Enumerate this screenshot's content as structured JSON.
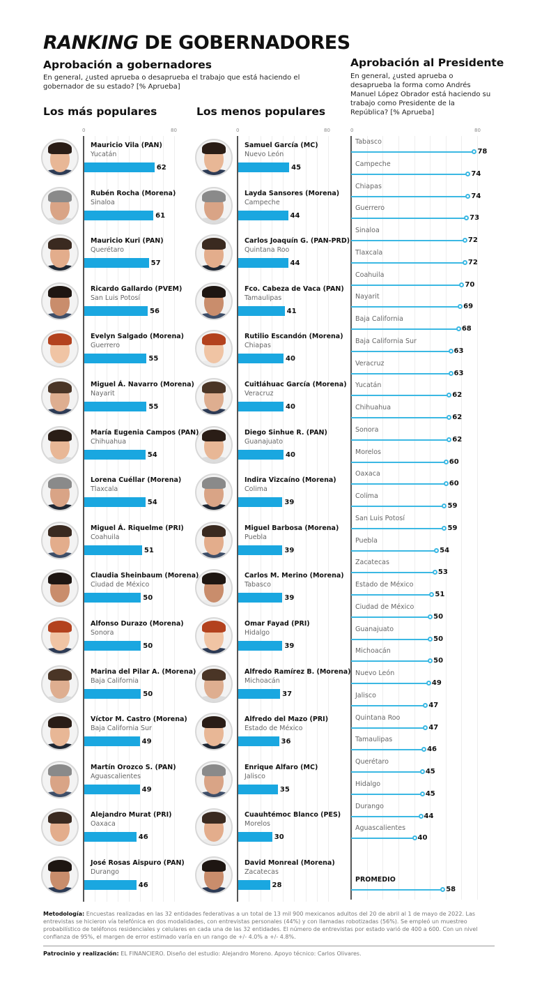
{
  "header": {
    "title_italic": "RANKING",
    "title_rest": " DE GOBERNADORES",
    "subtitle": "Aprobación a gobernadores",
    "question": "En general, ¿usted aprueba o desaprueba el trabajo que está haciendo el gobernador de su estado? [% Aprueba]"
  },
  "president_section": {
    "title": "Aprobación al Presidente",
    "question": "En general, ¿usted aprueba o desaprueba la forma como Andrés Manuel López Obrador está haciendo su trabajo como Presidente de la República? [% Aprueba]",
    "axis_min_label": "0",
    "axis_max_label": "80",
    "promedio_label": "PROMEDIO",
    "promedio_value": 58
  },
  "sections": {
    "most_popular_title": "Los más populares",
    "least_popular_title": "Los menos populares",
    "axis_min_label": "0",
    "axis_max_label": "80"
  },
  "colors": {
    "bar": "#1aa7e0",
    "lollipop": "#3bb8e3",
    "axis": "#555555",
    "grid": "#eeeeee"
  },
  "chart_data": [
    {
      "type": "bar",
      "title": "Los más populares",
      "orientation": "horizontal",
      "xlim": [
        0,
        80
      ],
      "xlabel": "% Aprueba",
      "grid": true,
      "categories": [
        "Mauricio Vila (PAN) - Yucatán",
        "Rubén Rocha (Morena) - Sinaloa",
        "Mauricio Kuri (PAN) - Querétaro",
        "Ricardo Gallardo (PVEM) - San Luis Potosí",
        "Evelyn Salgado (Morena) - Guerrero",
        "Miguel Á. Navarro (Morena) - Nayarit",
        "María Eugenia Campos (PAN) - Chihuahua",
        "Lorena Cuéllar (Morena) - Tlaxcala",
        "Miguel Á. Riquelme (PRI) - Coahuila",
        "Claudia Sheinbaum (Morena) - Ciudad de México",
        "Alfonso Durazo (Morena) - Sonora",
        "Marina del Pilar A. (Morena) - Baja California",
        "Víctor M. Castro (Morena) - Baja California Sur",
        "Martín Orozco S. (PAN) - Aguascalientes",
        "Alejandro Murat (PRI) - Oaxaca",
        "José Rosas Aispuro (PAN) - Durango"
      ],
      "values": [
        62,
        61,
        57,
        56,
        55,
        55,
        54,
        54,
        51,
        50,
        50,
        50,
        49,
        49,
        46,
        46
      ]
    },
    {
      "type": "bar",
      "title": "Los menos populares",
      "orientation": "horizontal",
      "xlim": [
        0,
        80
      ],
      "xlabel": "% Aprueba",
      "grid": true,
      "categories": [
        "Samuel García (MC) - Nuevo León",
        "Layda Sansores (Morena) - Campeche",
        "Carlos Joaquín G. (PAN-PRD) - Quintana Roo",
        "Fco. Cabeza de Vaca (PAN) - Tamaulipas",
        "Rutilio Escandón (Morena) - Chiapas",
        "Cuitláhuac García (Morena) - Veracruz",
        "Diego Sinhue R. (PAN) - Guanajuato",
        "Indira Vizcaíno (Morena) - Colima",
        "Miguel Barbosa (Morena) - Puebla",
        "Carlos M. Merino (Morena) - Tabasco",
        "Omar Fayad (PRI) - Hidalgo",
        "Alfredo Ramírez B. (Morena) - Michoacán",
        "Alfredo del Mazo (PRI) - Estado de México",
        "Enrique Alfaro (MC) - Jalisco",
        "Cuauhtémoc Blanco (PES) - Morelos",
        "David Monreal (Morena) - Zacatecas"
      ],
      "values": [
        45,
        44,
        44,
        41,
        40,
        40,
        40,
        39,
        39,
        39,
        39,
        37,
        36,
        35,
        30,
        28
      ]
    },
    {
      "type": "bar",
      "subtype": "lollipop",
      "title": "Aprobación al Presidente",
      "orientation": "horizontal",
      "xlim": [
        0,
        80
      ],
      "xlabel": "% Aprueba",
      "grid": true,
      "categories": [
        "Tabasco",
        "Campeche",
        "Chiapas",
        "Guerrero",
        "Sinaloa",
        "Tlaxcala",
        "Coahuila",
        "Nayarit",
        "Baja California",
        "Baja California Sur",
        "Veracruz",
        "Yucatán",
        "Chihuahua",
        "Sonora",
        "Morelos",
        "Oaxaca",
        "Colima",
        "San Luis Potosí",
        "Puebla",
        "Zacatecas",
        "Estado de México",
        "Ciudad de México",
        "Guanajuato",
        "Michoacán",
        "Nuevo León",
        "Jalisco",
        "Quintana Roo",
        "Tamaulipas",
        "Querétaro",
        "Hidalgo",
        "Durango",
        "Aguascalientes",
        "PROMEDIO"
      ],
      "values": [
        78,
        74,
        74,
        73,
        72,
        72,
        70,
        69,
        68,
        63,
        63,
        62,
        62,
        62,
        60,
        60,
        59,
        59,
        54,
        53,
        51,
        50,
        50,
        50,
        49,
        47,
        47,
        46,
        45,
        45,
        44,
        40,
        58
      ]
    }
  ],
  "most_popular": [
    {
      "name": "Mauricio Vila (PAN)",
      "state": "Yucatán",
      "value": "62",
      "n": 62
    },
    {
      "name": "Rubén Rocha (Morena)",
      "state": "Sinaloa",
      "value": "61",
      "n": 61
    },
    {
      "name": "Mauricio Kuri (PAN)",
      "state": "Querétaro",
      "value": "57",
      "n": 57
    },
    {
      "name": "Ricardo Gallardo (PVEM)",
      "state": "San Luis Potosí",
      "value": "56",
      "n": 56
    },
    {
      "name": "Evelyn Salgado (Morena)",
      "state": "Guerrero",
      "value": "55",
      "n": 55
    },
    {
      "name": "Miguel Á. Navarro (Morena)",
      "state": "Nayarit",
      "value": "55",
      "n": 55
    },
    {
      "name": "María Eugenia Campos (PAN)",
      "state": "Chihuahua",
      "value": "54",
      "n": 54
    },
    {
      "name": "Lorena Cuéllar (Morena)",
      "state": "Tlaxcala",
      "value": "54",
      "n": 54
    },
    {
      "name": "Miguel Á. Riquelme (PRI)",
      "state": "Coahuila",
      "value": "51",
      "n": 51
    },
    {
      "name": "Claudia Sheinbaum (Morena)",
      "state": "Ciudad de México",
      "value": "50",
      "n": 50
    },
    {
      "name": "Alfonso Durazo (Morena)",
      "state": "Sonora",
      "value": "50",
      "n": 50
    },
    {
      "name": "Marina del Pilar A. (Morena)",
      "state": "Baja California",
      "value": "50",
      "n": 50
    },
    {
      "name": "Víctor M. Castro (Morena)",
      "state": "Baja California Sur",
      "value": "49",
      "n": 49
    },
    {
      "name": "Martín Orozco S. (PAN)",
      "state": "Aguascalientes",
      "value": "49",
      "n": 49
    },
    {
      "name": "Alejandro Murat (PRI)",
      "state": "Oaxaca",
      "value": "46",
      "n": 46
    },
    {
      "name": "José Rosas Aispuro (PAN)",
      "state": "Durango",
      "value": "46",
      "n": 46
    }
  ],
  "least_popular": [
    {
      "name": "Samuel García (MC)",
      "state": "Nuevo León",
      "value": "45",
      "n": 45
    },
    {
      "name": "Layda Sansores (Morena)",
      "state": "Campeche",
      "value": "44",
      "n": 44
    },
    {
      "name": "Carlos Joaquín G. (PAN-PRD)",
      "state": "Quintana Roo",
      "value": "44",
      "n": 44
    },
    {
      "name": "Fco. Cabeza de Vaca (PAN)",
      "state": "Tamaulipas",
      "value": "41",
      "n": 41
    },
    {
      "name": "Rutilio Escandón (Morena)",
      "state": "Chiapas",
      "value": "40",
      "n": 40
    },
    {
      "name": "Cuitláhuac García (Morena)",
      "state": "Veracruz",
      "value": "40",
      "n": 40
    },
    {
      "name": "Diego Sinhue R. (PAN)",
      "state": "Guanajuato",
      "value": "40",
      "n": 40
    },
    {
      "name": "Indira Vizcaíno (Morena)",
      "state": "Colima",
      "value": "39",
      "n": 39
    },
    {
      "name": "Miguel Barbosa (Morena)",
      "state": "Puebla",
      "value": "39",
      "n": 39
    },
    {
      "name": "Carlos M. Merino (Morena)",
      "state": "Tabasco",
      "value": "39",
      "n": 39
    },
    {
      "name": "Omar Fayad (PRI)",
      "state": "Hidalgo",
      "value": "39",
      "n": 39
    },
    {
      "name": "Alfredo Ramírez B. (Morena)",
      "state": "Michoacán",
      "value": "37",
      "n": 37
    },
    {
      "name": "Alfredo del Mazo (PRI)",
      "state": "Estado de México",
      "value": "36",
      "n": 36
    },
    {
      "name": "Enrique Alfaro (MC)",
      "state": "Jalisco",
      "value": "35",
      "n": 35
    },
    {
      "name": "Cuauhtémoc Blanco (PES)",
      "state": "Morelos",
      "value": "30",
      "n": 30
    },
    {
      "name": "David Monreal (Morena)",
      "state": "Zacatecas",
      "value": "28",
      "n": 28
    }
  ],
  "president_rows": [
    {
      "state": "Tabasco",
      "value": "78",
      "n": 78
    },
    {
      "state": "Campeche",
      "value": "74",
      "n": 74
    },
    {
      "state": "Chiapas",
      "value": "74",
      "n": 74
    },
    {
      "state": "Guerrero",
      "value": "73",
      "n": 73
    },
    {
      "state": "Sinaloa",
      "value": "72",
      "n": 72
    },
    {
      "state": "Tlaxcala",
      "value": "72",
      "n": 72
    },
    {
      "state": "Coahuila",
      "value": "70",
      "n": 70
    },
    {
      "state": "Nayarit",
      "value": "69",
      "n": 69
    },
    {
      "state": "Baja California",
      "value": "68",
      "n": 68
    },
    {
      "state": "Baja California Sur",
      "value": "63",
      "n": 63
    },
    {
      "state": "Veracruz",
      "value": "63",
      "n": 63
    },
    {
      "state": "Yucatán",
      "value": "62",
      "n": 62
    },
    {
      "state": "Chihuahua",
      "value": "62",
      "n": 62
    },
    {
      "state": "Sonora",
      "value": "62",
      "n": 62
    },
    {
      "state": "Morelos",
      "value": "60",
      "n": 60
    },
    {
      "state": "Oaxaca",
      "value": "60",
      "n": 60
    },
    {
      "state": "Colima",
      "value": "59",
      "n": 59
    },
    {
      "state": "San Luis Potosí",
      "value": "59",
      "n": 59
    },
    {
      "state": "Puebla",
      "value": "54",
      "n": 54
    },
    {
      "state": "Zacatecas",
      "value": "53",
      "n": 53
    },
    {
      "state": "Estado de México",
      "value": "51",
      "n": 51
    },
    {
      "state": "Ciudad de México",
      "value": "50",
      "n": 50
    },
    {
      "state": "Guanajuato",
      "value": "50",
      "n": 50
    },
    {
      "state": "Michoacán",
      "value": "50",
      "n": 50
    },
    {
      "state": "Nuevo León",
      "value": "49",
      "n": 49
    },
    {
      "state": "Jalisco",
      "value": "47",
      "n": 47
    },
    {
      "state": "Quintana Roo",
      "value": "47",
      "n": 47
    },
    {
      "state": "Tamaulipas",
      "value": "46",
      "n": 46
    },
    {
      "state": "Querétaro",
      "value": "45",
      "n": 45
    },
    {
      "state": "Hidalgo",
      "value": "45",
      "n": 45
    },
    {
      "state": "Durango",
      "value": "44",
      "n": 44
    },
    {
      "state": "Aguascalientes",
      "value": "40",
      "n": 40
    }
  ],
  "footer": {
    "methodology_label": "Metodología:",
    "methodology_text": " Encuestas realizadas en las 32 entidades federativas a un total de 13 mil 900 mexicanos adultos del 20 de abril al 1 de mayo de 2022. Las entrevistas se hicieron vía telefónica en dos modalidades, con entrevistas personales (44%) y con llamadas robotizadas (56%). Se empleó un muestreo probabilístico de teléfonos residenciales y celulares en cada una de las 32 entidades. El número de entrevistas por estado varió de 400 a 600. Con un nivel confianza de 95%, el margen de error estimado varía en un rango de +/- 4.0% a +/- 4.8%.",
    "credits_label": "Patrocinio y realización:",
    "credits_text": " EL FINANCIERO. Diseño del estudio: Alejandro Moreno. Apoyo técnico: Carlos Olivares."
  }
}
